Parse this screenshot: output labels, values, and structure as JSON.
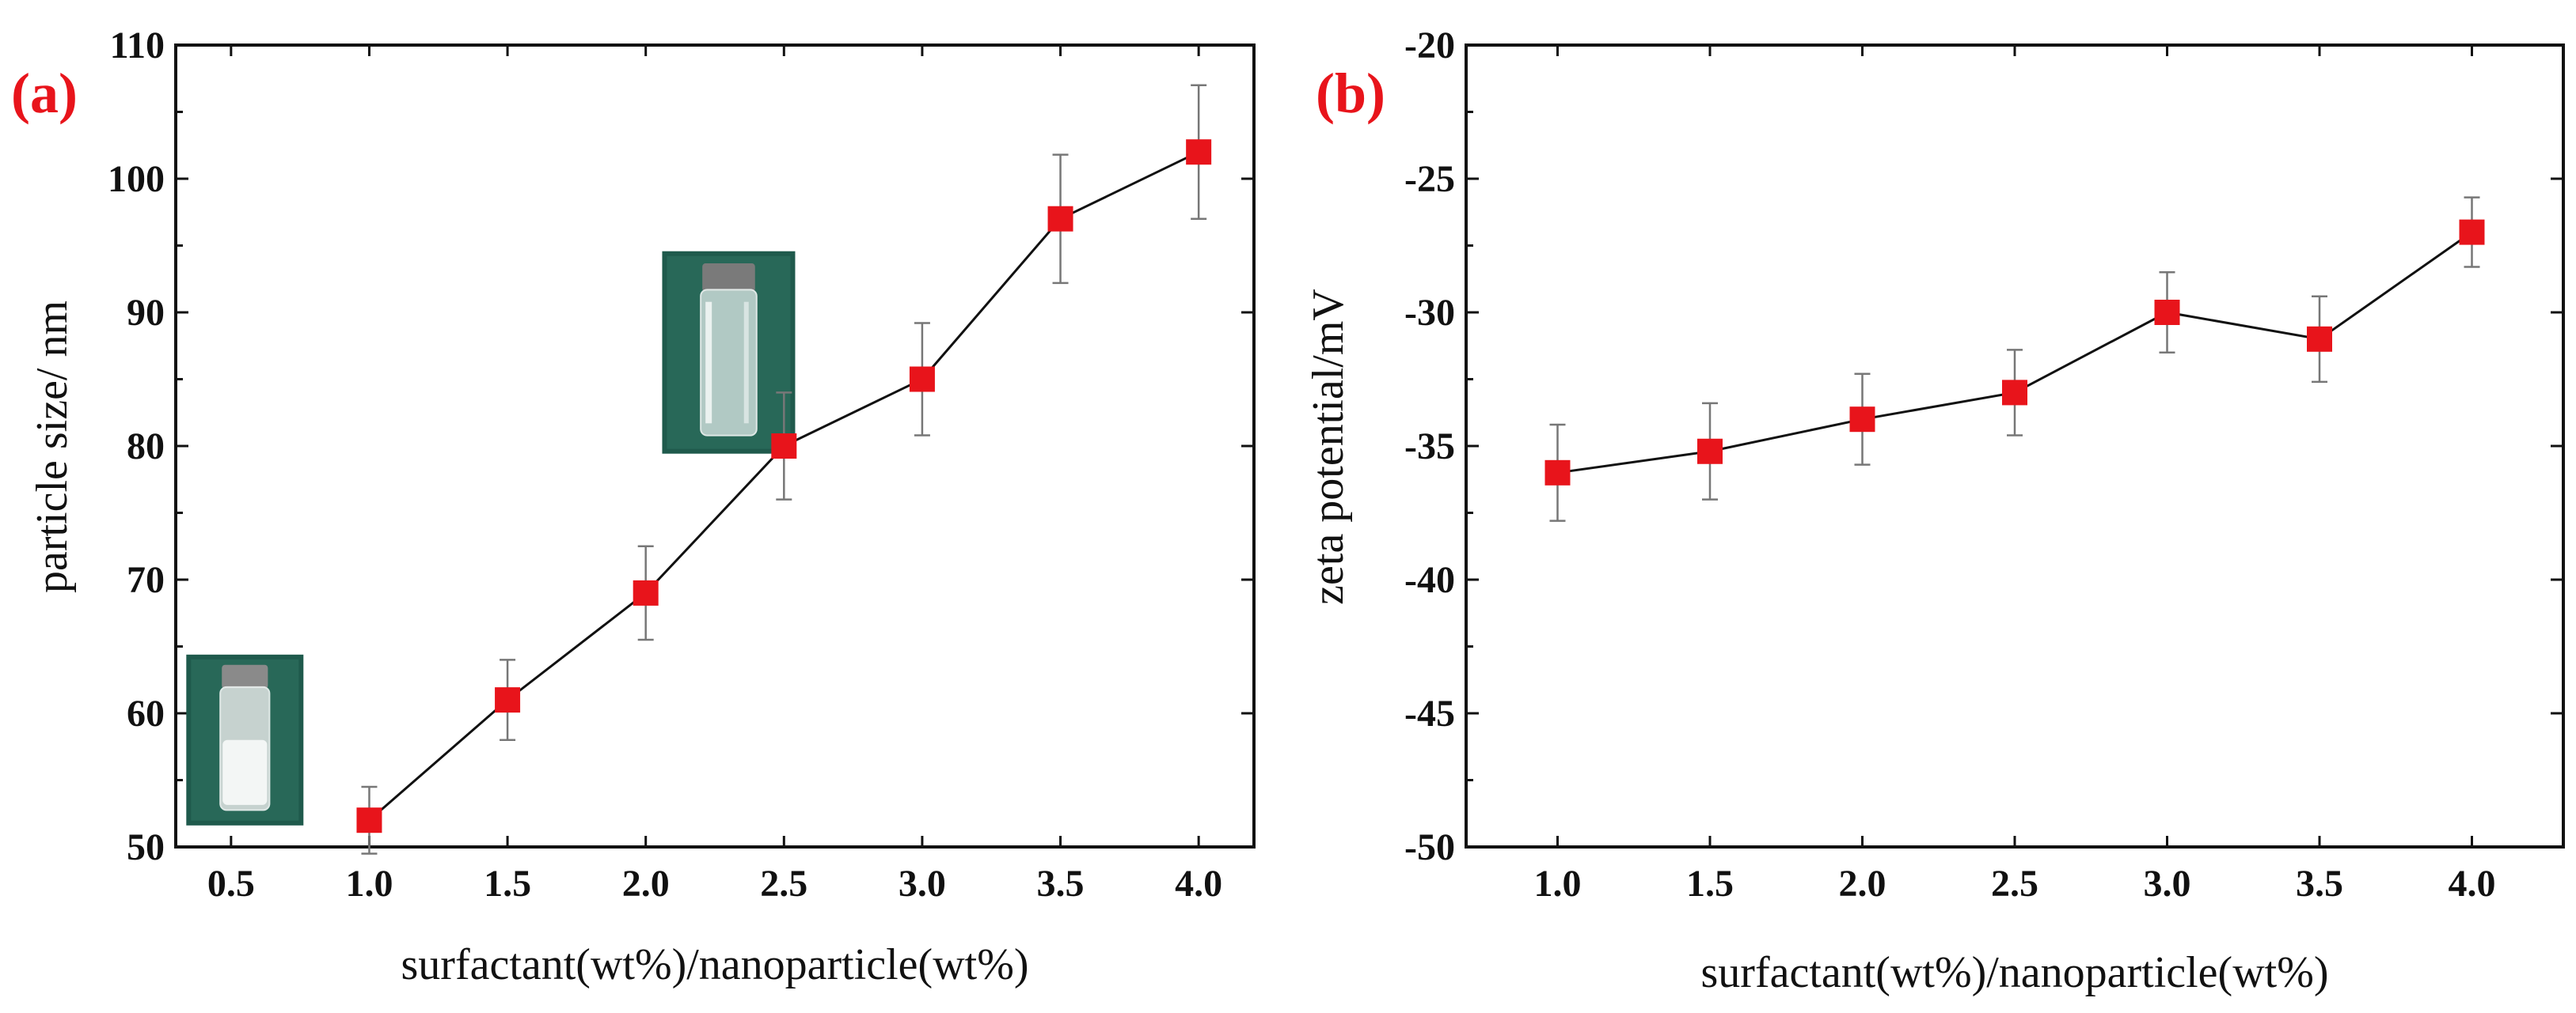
{
  "chart_data": [
    {
      "type": "line",
      "panel_label": "(a)",
      "xlabel": "surfactant(wt%)/nanoparticle(wt%)",
      "ylabel": "particle size/ nm",
      "xlim": [
        0.3,
        4.2
      ],
      "ylim": [
        50,
        110
      ],
      "xticks": [
        0.5,
        1.0,
        1.5,
        2.0,
        2.5,
        3.0,
        3.5,
        4.0
      ],
      "xtick_labels": [
        "0.5",
        "1.0",
        "1.5",
        "2.0",
        "2.5",
        "3.0",
        "3.5",
        "4.0"
      ],
      "yticks": [
        50,
        60,
        70,
        80,
        90,
        100,
        110
      ],
      "ytick_labels": [
        "50",
        "60",
        "70",
        "80",
        "90",
        "100",
        "110"
      ],
      "x": [
        1.0,
        1.5,
        2.0,
        2.5,
        3.0,
        3.5,
        4.0
      ],
      "y": [
        52,
        61,
        69,
        80,
        85,
        97,
        102
      ],
      "yerr": [
        2.5,
        3.0,
        3.5,
        4.0,
        4.2,
        4.8,
        5.0
      ],
      "marker_color": "#e8141b",
      "insets": [
        {
          "name": "milky-dispersion-vial-photo",
          "anchor_x": 0.55,
          "anchor_y": 58
        },
        {
          "name": "clear-dispersion-vial-photo",
          "anchor_x": 2.3,
          "anchor_y": 87
        }
      ]
    },
    {
      "type": "line",
      "panel_label": "(b)",
      "xlabel": "surfactant(wt%)/nanoparticle(wt%)",
      "ylabel": "zeta potential/mV",
      "xlim": [
        0.7,
        4.3
      ],
      "ylim": [
        -50,
        -20
      ],
      "xticks": [
        1.0,
        1.5,
        2.0,
        2.5,
        3.0,
        3.5,
        4.0
      ],
      "xtick_labels": [
        "1.0",
        "1.5",
        "2.0",
        "2.5",
        "3.0",
        "3.5",
        "4.0"
      ],
      "yticks": [
        -50,
        -45,
        -40,
        -35,
        -30,
        -25,
        -20
      ],
      "ytick_labels": [
        "-50",
        "-45",
        "-40",
        "-35",
        "-30",
        "-25",
        "-20"
      ],
      "x": [
        1.0,
        1.5,
        2.0,
        2.5,
        3.0,
        3.5,
        4.0
      ],
      "y": [
        -36,
        -35.2,
        -34,
        -33,
        -30,
        -31,
        -27
      ],
      "yerr": [
        1.8,
        1.8,
        1.7,
        1.6,
        1.5,
        1.6,
        1.3
      ],
      "marker_color": "#e8141b"
    }
  ]
}
